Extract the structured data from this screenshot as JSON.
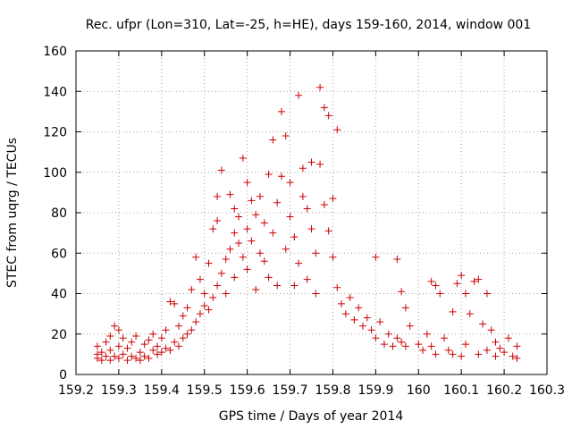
{
  "chart_data": {
    "type": "scatter",
    "title": "Rec. ufpr (Lon=310, Lat=-25, h=HE), days 159-160, 2014, window 001",
    "xlabel": "GPS time / Days of year 2014",
    "ylabel": "STEC from uqrg / TECUs",
    "xlim": [
      159.2,
      160.3
    ],
    "ylim": [
      0,
      160
    ],
    "xticks": [
      "159.2",
      "159.3",
      "159.4",
      "159.5",
      "159.6",
      "159.7",
      "159.8",
      "159.9",
      "160",
      "160.1",
      "160.2",
      "160.3"
    ],
    "yticks": [
      "0",
      "20",
      "40",
      "60",
      "80",
      "100",
      "120",
      "140",
      "160"
    ],
    "grid": true,
    "marker": "+",
    "color": "#cc0000",
    "series": [
      {
        "points": [
          [
            159.25,
            10
          ],
          [
            159.25,
            8
          ],
          [
            159.25,
            14
          ],
          [
            159.26,
            7
          ],
          [
            159.26,
            11
          ],
          [
            159.27,
            9
          ],
          [
            159.27,
            16
          ],
          [
            159.28,
            19
          ],
          [
            159.28,
            7
          ],
          [
            159.28,
            12
          ],
          [
            159.29,
            24
          ],
          [
            159.29,
            9
          ],
          [
            159.3,
            22
          ],
          [
            159.3,
            8
          ],
          [
            159.3,
            14
          ],
          [
            159.31,
            10
          ],
          [
            159.31,
            18
          ],
          [
            159.32,
            7
          ],
          [
            159.32,
            13
          ],
          [
            159.33,
            9
          ],
          [
            159.33,
            16
          ],
          [
            159.34,
            8
          ],
          [
            159.34,
            19
          ],
          [
            159.35,
            11
          ],
          [
            159.35,
            7
          ],
          [
            159.36,
            15
          ],
          [
            159.36,
            9
          ],
          [
            159.37,
            17
          ],
          [
            159.37,
            8
          ],
          [
            159.38,
            12
          ],
          [
            159.38,
            20
          ],
          [
            159.39,
            10
          ],
          [
            159.39,
            14
          ],
          [
            159.4,
            11
          ],
          [
            159.4,
            18
          ],
          [
            159.41,
            13
          ],
          [
            159.41,
            22
          ],
          [
            159.42,
            36
          ],
          [
            159.42,
            12
          ],
          [
            159.43,
            35
          ],
          [
            159.43,
            16
          ],
          [
            159.44,
            14
          ],
          [
            159.44,
            24
          ],
          [
            159.45,
            18
          ],
          [
            159.45,
            29
          ],
          [
            159.46,
            20
          ],
          [
            159.46,
            33
          ],
          [
            159.47,
            22
          ],
          [
            159.47,
            42
          ],
          [
            159.48,
            26
          ],
          [
            159.48,
            58
          ],
          [
            159.49,
            30
          ],
          [
            159.49,
            47
          ],
          [
            159.5,
            34
          ],
          [
            159.5,
            40
          ],
          [
            159.51,
            55
          ],
          [
            159.51,
            32
          ],
          [
            159.52,
            72
          ],
          [
            159.52,
            38
          ],
          [
            159.53,
            88
          ],
          [
            159.53,
            44
          ],
          [
            159.53,
            76
          ],
          [
            159.54,
            101
          ],
          [
            159.54,
            50
          ],
          [
            159.55,
            57
          ],
          [
            159.55,
            40
          ],
          [
            159.56,
            89
          ],
          [
            159.56,
            62
          ],
          [
            159.57,
            82
          ],
          [
            159.57,
            70
          ],
          [
            159.57,
            48
          ],
          [
            159.58,
            65
          ],
          [
            159.58,
            78
          ],
          [
            159.59,
            107
          ],
          [
            159.59,
            58
          ],
          [
            159.6,
            95
          ],
          [
            159.6,
            72
          ],
          [
            159.6,
            52
          ],
          [
            159.61,
            86
          ],
          [
            159.61,
            66
          ],
          [
            159.62,
            79
          ],
          [
            159.62,
            42
          ],
          [
            159.63,
            60
          ],
          [
            159.63,
            88
          ],
          [
            159.64,
            56
          ],
          [
            159.64,
            75
          ],
          [
            159.65,
            99
          ],
          [
            159.65,
            48
          ],
          [
            159.66,
            116
          ],
          [
            159.66,
            70
          ],
          [
            159.67,
            44
          ],
          [
            159.67,
            85
          ],
          [
            159.68,
            98
          ],
          [
            159.68,
            130
          ],
          [
            159.69,
            118
          ],
          [
            159.69,
            62
          ],
          [
            159.7,
            95
          ],
          [
            159.7,
            78
          ],
          [
            159.71,
            68
          ],
          [
            159.71,
            44
          ],
          [
            159.72,
            138
          ],
          [
            159.72,
            55
          ],
          [
            159.73,
            102
          ],
          [
            159.73,
            88
          ],
          [
            159.74,
            82
          ],
          [
            159.74,
            47
          ],
          [
            159.75,
            105
          ],
          [
            159.75,
            72
          ],
          [
            159.76,
            60
          ],
          [
            159.76,
            40
          ],
          [
            159.77,
            104
          ],
          [
            159.77,
            142
          ],
          [
            159.78,
            132
          ],
          [
            159.78,
            84
          ],
          [
            159.79,
            128
          ],
          [
            159.79,
            71
          ],
          [
            159.8,
            87
          ],
          [
            159.8,
            58
          ],
          [
            159.81,
            121
          ],
          [
            159.81,
            43
          ],
          [
            159.82,
            35
          ],
          [
            159.83,
            30
          ],
          [
            159.84,
            38
          ],
          [
            159.85,
            27
          ],
          [
            159.86,
            33
          ],
          [
            159.87,
            24
          ],
          [
            159.88,
            28
          ],
          [
            159.89,
            22
          ],
          [
            159.9,
            58
          ],
          [
            159.9,
            18
          ],
          [
            159.91,
            26
          ],
          [
            159.92,
            15
          ],
          [
            159.93,
            20
          ],
          [
            159.94,
            14
          ],
          [
            159.95,
            57
          ],
          [
            159.95,
            18
          ],
          [
            159.96,
            41
          ],
          [
            159.96,
            16
          ],
          [
            159.97,
            33
          ],
          [
            159.97,
            14
          ],
          [
            159.98,
            24
          ],
          [
            160.0,
            15
          ],
          [
            160.01,
            12
          ],
          [
            160.02,
            20
          ],
          [
            160.03,
            46
          ],
          [
            160.03,
            14
          ],
          [
            160.04,
            44
          ],
          [
            160.04,
            10
          ],
          [
            160.05,
            40
          ],
          [
            160.06,
            18
          ],
          [
            160.07,
            12
          ],
          [
            160.08,
            31
          ],
          [
            160.08,
            10
          ],
          [
            160.09,
            45
          ],
          [
            160.1,
            49
          ],
          [
            160.1,
            9
          ],
          [
            160.11,
            40
          ],
          [
            160.11,
            15
          ],
          [
            160.12,
            30
          ],
          [
            160.13,
            46
          ],
          [
            160.14,
            47
          ],
          [
            160.14,
            10
          ],
          [
            160.15,
            25
          ],
          [
            160.16,
            40
          ],
          [
            160.16,
            12
          ],
          [
            160.17,
            22
          ],
          [
            160.18,
            16
          ],
          [
            160.18,
            9
          ],
          [
            160.19,
            13
          ],
          [
            160.2,
            11
          ],
          [
            160.21,
            18
          ],
          [
            160.22,
            9
          ],
          [
            160.23,
            14
          ],
          [
            160.23,
            8
          ]
        ]
      }
    ]
  }
}
